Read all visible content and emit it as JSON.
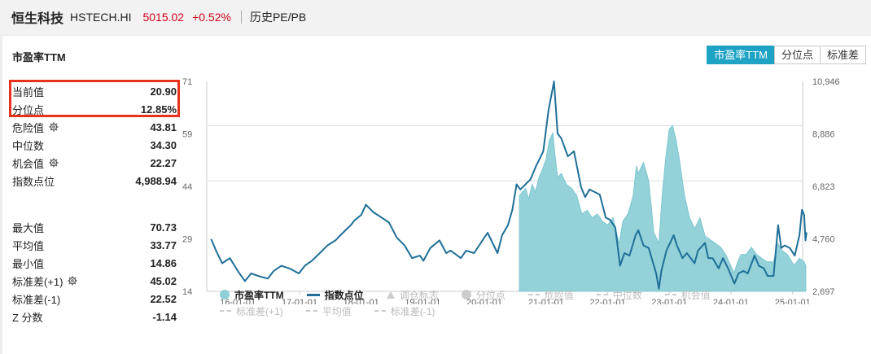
{
  "header": {
    "name": "恒生科技",
    "code": "HSTECH.HI",
    "price": "5015.02",
    "change": "+0.52%",
    "subtitle": "历史PE/PB"
  },
  "panel": {
    "title": "市盈率TTM",
    "tabs": [
      {
        "label": "市盈率TTM",
        "active": true
      },
      {
        "label": "分位点",
        "active": false
      },
      {
        "label": "标准差",
        "active": false
      }
    ]
  },
  "stats_top": [
    {
      "label": "当前值",
      "value": "20.90",
      "gear": false
    },
    {
      "label": "分位点",
      "value": "12.85%",
      "gear": false
    },
    {
      "label": "危险值",
      "value": "43.81",
      "gear": true
    },
    {
      "label": "中位数",
      "value": "34.30",
      "gear": false
    },
    {
      "label": "机会值",
      "value": "22.27",
      "gear": true
    },
    {
      "label": "指数点位",
      "value": "4,988.94",
      "gear": false
    }
  ],
  "stats_bottom": [
    {
      "label": "最大值",
      "value": "70.73",
      "gear": false
    },
    {
      "label": "平均值",
      "value": "33.77",
      "gear": false
    },
    {
      "label": "最小值",
      "value": "14.86",
      "gear": false
    },
    {
      "label": "标准差(+1)",
      "value": "45.02",
      "gear": true
    },
    {
      "label": "标准差(-1)",
      "value": "22.52",
      "gear": false
    },
    {
      "label": "Z 分数",
      "value": "-1.14",
      "gear": false
    }
  ],
  "colors": {
    "pe_fill": "#8ecfd6",
    "index_line": "#1f6f98",
    "highlight": "#e8321e",
    "accent": "#1fa3c5"
  },
  "chart_data": {
    "type": "area",
    "x_start": "2015-07",
    "x_end": "2025-03",
    "xticks": [
      "16-01-01",
      "17-01-01",
      "18-01-01",
      "19-01-01",
      "20-01-01",
      "21-01-01",
      "22-01-01",
      "23-01-01",
      "24-01-01",
      "25-01-01"
    ],
    "y_left_ticks": [
      "71",
      "59",
      "44",
      "29",
      "14"
    ],
    "y_left_range": [
      14,
      71
    ],
    "y_right_ticks": [
      "10,946",
      "8,886",
      "6,823",
      "4,760",
      "2,697"
    ],
    "y_right_range": [
      2697,
      10946
    ],
    "grid_lines_left": [
      59,
      44
    ],
    "series": [
      {
        "name": "市盈率TTM",
        "type": "area",
        "axis": "left",
        "points": [
          [
            "2020-07-27",
            40
          ],
          [
            "2020-08-15",
            41
          ],
          [
            "2020-09-01",
            42
          ],
          [
            "2020-09-20",
            39
          ],
          [
            "2020-10-10",
            43
          ],
          [
            "2020-10-30",
            41
          ],
          [
            "2020-11-20",
            45
          ],
          [
            "2020-12-10",
            47
          ],
          [
            "2021-01-01",
            50
          ],
          [
            "2021-01-20",
            55
          ],
          [
            "2021-02-10",
            57
          ],
          [
            "2021-02-20",
            52
          ],
          [
            "2021-03-10",
            45
          ],
          [
            "2021-04-01",
            46
          ],
          [
            "2021-05-01",
            43
          ],
          [
            "2021-06-01",
            42
          ],
          [
            "2021-07-01",
            40
          ],
          [
            "2021-08-01",
            35
          ],
          [
            "2021-09-01",
            36
          ],
          [
            "2021-10-01",
            34
          ],
          [
            "2021-11-01",
            35
          ],
          [
            "2021-12-01",
            33
          ],
          [
            "2022-01-01",
            32
          ],
          [
            "2022-02-01",
            34
          ],
          [
            "2022-03-10",
            27
          ],
          [
            "2022-04-01",
            33
          ],
          [
            "2022-05-01",
            35
          ],
          [
            "2022-06-01",
            40
          ],
          [
            "2022-06-20",
            48
          ],
          [
            "2022-07-01",
            46
          ],
          [
            "2022-08-01",
            49
          ],
          [
            "2022-09-01",
            44
          ],
          [
            "2022-10-01",
            30
          ],
          [
            "2022-10-31",
            27
          ],
          [
            "2022-11-20",
            40
          ],
          [
            "2022-12-10",
            50
          ],
          [
            "2023-01-01",
            58
          ],
          [
            "2023-01-20",
            59
          ],
          [
            "2023-02-10",
            55
          ],
          [
            "2023-03-01",
            50
          ],
          [
            "2023-04-01",
            40
          ],
          [
            "2023-05-01",
            34
          ],
          [
            "2023-06-01",
            31
          ],
          [
            "2023-07-01",
            34
          ],
          [
            "2023-08-01",
            29
          ],
          [
            "2023-09-01",
            28
          ],
          [
            "2023-10-01",
            27
          ],
          [
            "2023-11-01",
            26
          ],
          [
            "2023-12-01",
            24
          ],
          [
            "2024-01-20",
            19
          ],
          [
            "2024-02-10",
            22
          ],
          [
            "2024-03-01",
            24
          ],
          [
            "2024-04-01",
            24
          ],
          [
            "2024-05-01",
            26
          ],
          [
            "2024-06-01",
            24
          ],
          [
            "2024-07-01",
            23
          ],
          [
            "2024-08-01",
            22
          ],
          [
            "2024-09-10",
            22
          ],
          [
            "2024-10-05",
            27
          ],
          [
            "2024-11-01",
            25
          ],
          [
            "2024-12-01",
            24
          ],
          [
            "2025-01-10",
            21
          ],
          [
            "2025-02-10",
            23
          ],
          [
            "2025-03-10",
            22
          ],
          [
            "2025-03-20",
            20.9
          ]
        ]
      },
      {
        "name": "指数点位",
        "type": "line",
        "axis": "right",
        "points": [
          [
            "2015-07-27",
            4750
          ],
          [
            "2015-08-25",
            4300
          ],
          [
            "2015-09-30",
            3800
          ],
          [
            "2015-11-15",
            4000
          ],
          [
            "2016-01-01",
            3500
          ],
          [
            "2016-02-12",
            3100
          ],
          [
            "2016-03-20",
            3400
          ],
          [
            "2016-05-01",
            3300
          ],
          [
            "2016-06-27",
            3200
          ],
          [
            "2016-08-01",
            3500
          ],
          [
            "2016-09-15",
            3700
          ],
          [
            "2016-11-01",
            3600
          ],
          [
            "2016-12-28",
            3400
          ],
          [
            "2017-02-01",
            3700
          ],
          [
            "2017-03-15",
            3900
          ],
          [
            "2017-05-01",
            4200
          ],
          [
            "2017-06-15",
            4500
          ],
          [
            "2017-08-01",
            4700
          ],
          [
            "2017-09-15",
            5000
          ],
          [
            "2017-11-01",
            5300
          ],
          [
            "2017-11-25",
            5500
          ],
          [
            "2018-01-01",
            5700
          ],
          [
            "2018-01-29",
            6100
          ],
          [
            "2018-03-15",
            5800
          ],
          [
            "2018-05-01",
            5600
          ],
          [
            "2018-06-15",
            5400
          ],
          [
            "2018-08-01",
            4800
          ],
          [
            "2018-09-15",
            4500
          ],
          [
            "2018-10-30",
            4000
          ],
          [
            "2018-12-15",
            4100
          ],
          [
            "2019-01-05",
            3900
          ],
          [
            "2019-02-15",
            4400
          ],
          [
            "2019-04-10",
            4700
          ],
          [
            "2019-05-20",
            4200
          ],
          [
            "2019-06-15",
            4300
          ],
          [
            "2019-08-15",
            4000
          ],
          [
            "2019-09-15",
            4300
          ],
          [
            "2019-11-01",
            4200
          ],
          [
            "2019-12-31",
            4800
          ],
          [
            "2020-01-20",
            5000
          ],
          [
            "2020-03-19",
            4200
          ],
          [
            "2020-04-15",
            4900
          ],
          [
            "2020-05-20",
            5300
          ],
          [
            "2020-06-15",
            5900
          ],
          [
            "2020-07-10",
            6900
          ],
          [
            "2020-08-01",
            6700
          ],
          [
            "2020-09-01",
            6900
          ],
          [
            "2020-10-01",
            7100
          ],
          [
            "2020-11-01",
            7600
          ],
          [
            "2020-12-15",
            8200
          ],
          [
            "2021-01-15",
            9800
          ],
          [
            "2021-02-17",
            10946
          ],
          [
            "2021-03-10",
            8900
          ],
          [
            "2021-04-01",
            8700
          ],
          [
            "2021-05-10",
            8000
          ],
          [
            "2021-06-15",
            8200
          ],
          [
            "2021-07-27",
            6800
          ],
          [
            "2021-08-20",
            6400
          ],
          [
            "2021-09-15",
            6700
          ],
          [
            "2021-10-15",
            6600
          ],
          [
            "2021-11-15",
            6500
          ],
          [
            "2021-12-20",
            5600
          ],
          [
            "2022-01-15",
            5500
          ],
          [
            "2022-02-15",
            5200
          ],
          [
            "2022-03-15",
            3700
          ],
          [
            "2022-04-10",
            4200
          ],
          [
            "2022-05-10",
            4100
          ],
          [
            "2022-06-15",
            4900
          ],
          [
            "2022-07-01",
            5100
          ],
          [
            "2022-08-01",
            4500
          ],
          [
            "2022-09-01",
            4400
          ],
          [
            "2022-10-15",
            3400
          ],
          [
            "2022-10-31",
            2800
          ],
          [
            "2022-11-15",
            3500
          ],
          [
            "2022-12-15",
            4300
          ],
          [
            "2023-01-27",
            4900
          ],
          [
            "2023-02-15",
            4500
          ],
          [
            "2023-03-20",
            4000
          ],
          [
            "2023-04-15",
            4200
          ],
          [
            "2023-05-31",
            3800
          ],
          [
            "2023-06-20",
            4300
          ],
          [
            "2023-07-31",
            4600
          ],
          [
            "2023-08-20",
            4000
          ],
          [
            "2023-09-15",
            4000
          ],
          [
            "2023-10-20",
            3600
          ],
          [
            "2023-11-15",
            4000
          ],
          [
            "2023-12-15",
            3600
          ],
          [
            "2024-01-22",
            3000
          ],
          [
            "2024-02-15",
            3400
          ],
          [
            "2024-03-15",
            3500
          ],
          [
            "2024-04-10",
            3400
          ],
          [
            "2024-05-20",
            4100
          ],
          [
            "2024-06-15",
            3700
          ],
          [
            "2024-07-15",
            3600
          ],
          [
            "2024-08-05",
            3300
          ],
          [
            "2024-09-10",
            3300
          ],
          [
            "2024-10-07",
            5300
          ],
          [
            "2024-10-25",
            4400
          ],
          [
            "2024-11-15",
            4500
          ],
          [
            "2024-12-15",
            4400
          ],
          [
            "2025-01-13",
            4100
          ],
          [
            "2025-02-10",
            4900
          ],
          [
            "2025-02-25",
            5900
          ],
          [
            "2025-03-10",
            5700
          ],
          [
            "2025-03-18",
            4700
          ],
          [
            "2025-03-24",
            5015
          ]
        ]
      }
    ]
  },
  "legend": {
    "row1": [
      {
        "label": "市盈率TTM",
        "symbol": "dot",
        "color": "#8ecfd6",
        "on": true
      },
      {
        "label": "指数点位",
        "symbol": "line",
        "color": "#1f6f98",
        "on": true
      },
      {
        "label": "调仓标志",
        "symbol": "tri",
        "color": "#cccccc",
        "on": false
      },
      {
        "label": "分位点",
        "symbol": "dot",
        "color": "#cccccc",
        "on": false
      },
      {
        "label": "危险值",
        "symbol": "dash",
        "color": "#cccccc",
        "on": false
      },
      {
        "label": "中位数",
        "symbol": "dash",
        "color": "#cccccc",
        "on": false
      },
      {
        "label": "机会值",
        "symbol": "dash",
        "color": "#cccccc",
        "on": false
      }
    ],
    "row2": [
      {
        "label": "标准差(+1)",
        "symbol": "dash",
        "color": "#cccccc",
        "on": false
      },
      {
        "label": "平均值",
        "symbol": "dash",
        "color": "#cccccc",
        "on": false
      },
      {
        "label": "标准差(-1)",
        "symbol": "dash",
        "color": "#cccccc",
        "on": false
      }
    ]
  }
}
